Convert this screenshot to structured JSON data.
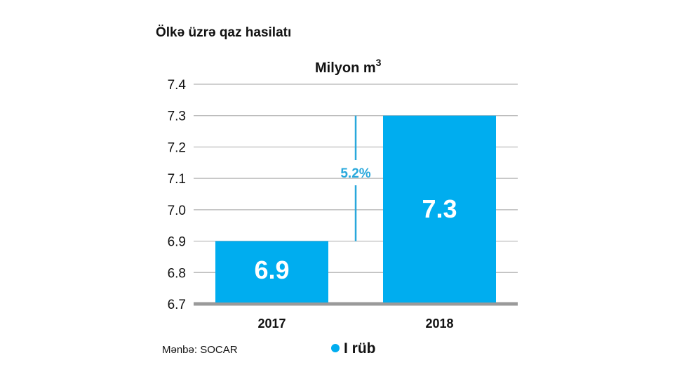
{
  "chart_data": {
    "type": "bar",
    "title": "Ölkə üzrə qaz hasilatı",
    "unit_label": "Milyon m",
    "unit_superscript": "3",
    "categories": [
      "2017",
      "2018"
    ],
    "series": [
      {
        "name": "I rüb",
        "values": [
          6.9,
          7.3
        ]
      }
    ],
    "data_labels": [
      "6.9",
      "7.3"
    ],
    "yticks": [
      "7.4",
      "7.3",
      "7.2",
      "7.1",
      "7.0",
      "6.9",
      "6.8",
      "6.7"
    ],
    "ylim": [
      6.7,
      7.4
    ],
    "grid": true,
    "legend_position": "bottom",
    "annotation": {
      "text": "5.2%",
      "from_value": 6.9,
      "to_value": 7.3
    },
    "source": "Mənbə: SOCAR",
    "colors": {
      "bar": "#00adef",
      "grid": "#b3b3b3",
      "baseline": "#9a9a9a",
      "annotation": "#29a8dc"
    }
  }
}
